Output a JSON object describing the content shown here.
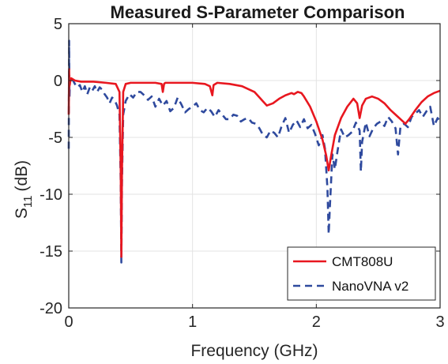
{
  "chart_data": {
    "type": "line",
    "title": "Measured S-Parameter Comparison",
    "xlabel": "Frequency (GHz)",
    "ylabel": {
      "base": "S",
      "sub": "11",
      "unit": "(dB)"
    },
    "xlim": [
      0,
      3
    ],
    "ylim": [
      -20,
      5
    ],
    "xticks": [
      0,
      1,
      2,
      3
    ],
    "yticks": [
      5,
      0,
      -5,
      -10,
      -15,
      -20
    ],
    "grid": true,
    "legend_position": "bottom-right",
    "series": [
      {
        "name": "CMT808U",
        "color": "#e8171f",
        "style": "solid",
        "x": [
          0.0,
          0.003,
          0.006,
          0.01,
          0.02,
          0.05,
          0.1,
          0.2,
          0.3,
          0.38,
          0.41,
          0.42,
          0.425,
          0.43,
          0.44,
          0.46,
          0.5,
          0.6,
          0.7,
          0.75,
          0.76,
          0.77,
          0.78,
          0.8,
          0.9,
          1.0,
          1.1,
          1.14,
          1.16,
          1.17,
          1.2,
          1.3,
          1.4,
          1.5,
          1.55,
          1.6,
          1.65,
          1.7,
          1.75,
          1.8,
          1.82,
          1.85,
          1.88,
          1.9,
          1.95,
          2.0,
          2.05,
          2.08,
          2.1,
          2.12,
          2.15,
          2.2,
          2.25,
          2.3,
          2.33,
          2.35,
          2.37,
          2.4,
          2.45,
          2.5,
          2.55,
          2.6,
          2.65,
          2.7,
          2.72,
          2.75,
          2.8,
          2.85,
          2.9,
          2.95,
          3.0
        ],
        "y": [
          -3.0,
          1.0,
          -0.5,
          -0.2,
          0.2,
          0.0,
          -0.1,
          -0.1,
          -0.2,
          -0.3,
          -1.0,
          -8.0,
          -15.5,
          -8.0,
          -1.0,
          -0.3,
          -0.2,
          -0.2,
          -0.2,
          -0.3,
          -1.0,
          -0.3,
          -0.2,
          -0.2,
          -0.2,
          -0.2,
          -0.3,
          -0.5,
          -1.3,
          -0.4,
          -0.2,
          -0.3,
          -0.5,
          -1.0,
          -1.6,
          -2.2,
          -2.0,
          -1.6,
          -1.3,
          -1.1,
          -1.2,
          -1.0,
          -1.1,
          -1.4,
          -2.3,
          -3.6,
          -5.2,
          -6.6,
          -7.9,
          -6.6,
          -4.8,
          -3.3,
          -2.3,
          -1.6,
          -2.0,
          -3.3,
          -2.2,
          -1.6,
          -1.4,
          -1.6,
          -2.0,
          -2.6,
          -3.1,
          -3.6,
          -3.8,
          -3.4,
          -2.6,
          -1.9,
          -1.4,
          -1.1,
          -0.9
        ]
      },
      {
        "name": "NanoVNA v2",
        "color": "#2f4a9e",
        "style": "dashed",
        "x": [
          0.0,
          0.003,
          0.006,
          0.01,
          0.015,
          0.02,
          0.03,
          0.05,
          0.07,
          0.09,
          0.11,
          0.13,
          0.15,
          0.17,
          0.19,
          0.21,
          0.23,
          0.25,
          0.27,
          0.29,
          0.31,
          0.33,
          0.35,
          0.37,
          0.39,
          0.41,
          0.42,
          0.425,
          0.43,
          0.44,
          0.46,
          0.49,
          0.52,
          0.55,
          0.58,
          0.61,
          0.64,
          0.67,
          0.7,
          0.73,
          0.76,
          0.79,
          0.82,
          0.85,
          0.88,
          0.91,
          0.94,
          0.97,
          1.0,
          1.03,
          1.06,
          1.09,
          1.12,
          1.15,
          1.18,
          1.21,
          1.24,
          1.27,
          1.3,
          1.33,
          1.36,
          1.39,
          1.42,
          1.45,
          1.48,
          1.51,
          1.54,
          1.57,
          1.6,
          1.63,
          1.66,
          1.69,
          1.72,
          1.75,
          1.78,
          1.81,
          1.84,
          1.87,
          1.9,
          1.93,
          1.96,
          1.99,
          2.02,
          2.05,
          2.07,
          2.09,
          2.1,
          2.11,
          2.13,
          2.15,
          2.17,
          2.2,
          2.23,
          2.26,
          2.29,
          2.32,
          2.35,
          2.36,
          2.37,
          2.4,
          2.43,
          2.46,
          2.49,
          2.52,
          2.55,
          2.58,
          2.61,
          2.64,
          2.66,
          2.68,
          2.71,
          2.74,
          2.77,
          2.8,
          2.83,
          2.86,
          2.89,
          2.92,
          2.95,
          2.98,
          3.0
        ],
        "y": [
          -6.0,
          3.5,
          -1.5,
          0.2,
          0.4,
          0.3,
          0.1,
          -0.3,
          -0.6,
          -0.4,
          -1.0,
          -0.5,
          -1.2,
          -0.6,
          -0.9,
          -0.5,
          -1.0,
          -0.6,
          -0.8,
          -1.2,
          -1.5,
          -2.0,
          -1.5,
          -1.7,
          -2.2,
          -3.0,
          -9.0,
          -16.0,
          -9.0,
          -3.0,
          -1.8,
          -1.2,
          -1.5,
          -1.0,
          -1.0,
          -1.3,
          -1.7,
          -1.4,
          -2.3,
          -1.6,
          -2.2,
          -1.8,
          -2.7,
          -2.4,
          -1.5,
          -2.1,
          -2.8,
          -2.5,
          -2.3,
          -2.0,
          -2.6,
          -2.8,
          -2.4,
          -2.7,
          -3.2,
          -2.6,
          -3.0,
          -3.4,
          -3.4,
          -3.0,
          -3.1,
          -3.6,
          -3.4,
          -3.3,
          -3.7,
          -3.8,
          -4.2,
          -4.8,
          -5.0,
          -4.4,
          -4.6,
          -5.0,
          -4.0,
          -3.3,
          -4.6,
          -3.9,
          -3.5,
          -4.1,
          -3.4,
          -4.2,
          -3.9,
          -4.7,
          -5.7,
          -4.8,
          -6.0,
          -9.5,
          -13.5,
          -11.0,
          -6.5,
          -7.8,
          -6.3,
          -4.3,
          -5.0,
          -4.8,
          -4.5,
          -3.7,
          -4.4,
          -8.0,
          -5.4,
          -3.7,
          -4.9,
          -4.2,
          -3.8,
          -3.6,
          -4.0,
          -3.2,
          -3.6,
          -4.2,
          -6.5,
          -4.0,
          -3.8,
          -4.1,
          -3.2,
          -2.9,
          -2.6,
          -3.2,
          -2.7,
          -2.3,
          -4.0,
          -3.3,
          -3.6
        ]
      }
    ]
  }
}
